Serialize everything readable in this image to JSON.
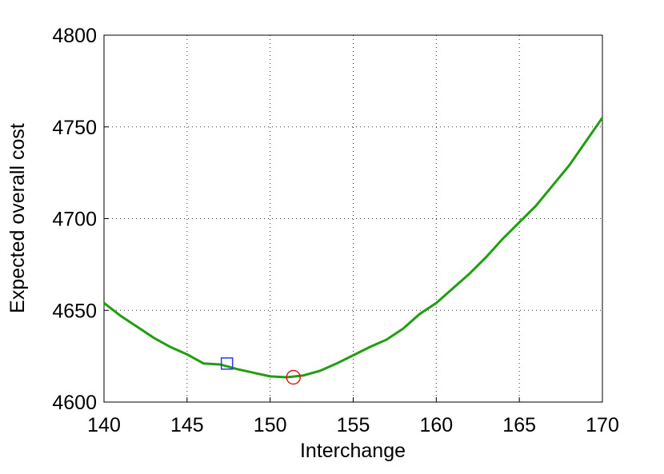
{
  "chart_data": {
    "type": "line",
    "xlabel": "Interchange",
    "ylabel": "Expected overall cost",
    "xlim": [
      140,
      170
    ],
    "xticks": [
      140,
      145,
      150,
      155,
      160,
      165,
      170
    ],
    "ylim": [
      4600,
      4800
    ],
    "yticks": [
      4600,
      4650,
      4700,
      4750,
      4800
    ],
    "grid": true,
    "series": [
      {
        "color": "#1f9e0f",
        "marker": "none",
        "x": [
          140,
          141,
          142,
          143,
          144,
          145,
          146,
          147,
          148,
          149,
          150,
          151,
          152,
          153,
          154,
          155,
          156,
          157,
          158,
          159,
          160,
          161,
          162,
          163,
          164,
          165,
          166,
          167,
          168,
          169,
          170
        ],
        "values": [
          4654,
          4647,
          4641,
          4635,
          4630,
          4626,
          4621,
          4620.5,
          4618,
          4616,
          4614,
          4613.5,
          4614.5,
          4617,
          4621,
          4625.5,
          4630,
          4634,
          4640,
          4648,
          4654,
          4662,
          4670,
          4679,
          4689,
          4698,
          4707,
          4718,
          4729,
          4742,
          4755
        ]
      },
      {
        "color": "#2a3bf0",
        "marker": "square",
        "x": [
          147.4
        ],
        "values": [
          4621
        ]
      },
      {
        "color": "#e8141b",
        "marker": "circle",
        "x": [
          151.4
        ],
        "values": [
          4613.5
        ]
      }
    ]
  }
}
